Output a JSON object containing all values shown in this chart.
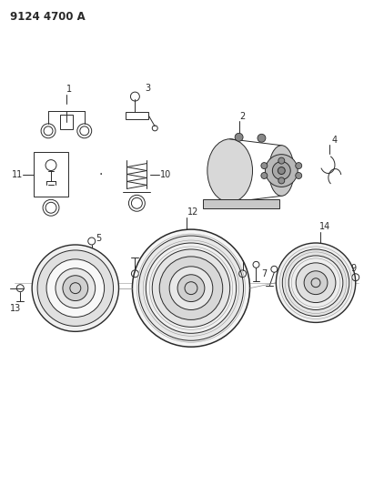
{
  "title": "9124 4700 A",
  "bg_color": "#ffffff",
  "lc": "#2a2a2a",
  "lc_light": "#888888",
  "title_fontsize": 8.5,
  "label_fontsize": 7.0,
  "fig_w": 4.11,
  "fig_h": 5.33,
  "dpi": 100
}
